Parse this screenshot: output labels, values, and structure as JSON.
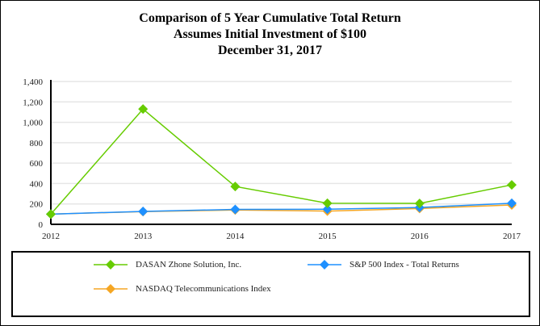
{
  "chart_data": {
    "type": "line",
    "title": [
      "Comparison of 5 Year Cumulative Total Return",
      "Assumes Initial Investment of $100",
      "December 31, 2017"
    ],
    "categories": [
      "2012",
      "2013",
      "2014",
      "2015",
      "2016",
      "2017"
    ],
    "ylim": [
      0,
      1400
    ],
    "yticks": [
      "0",
      "200",
      "400",
      "600",
      "800",
      "1,000",
      "1,200",
      "1,400"
    ],
    "grid": true,
    "legend_position": "bottom",
    "series": [
      {
        "name": "DASAN Zhone Solution, Inc.",
        "color": "#66cc00",
        "values": [
          100,
          1130,
          371,
          207,
          205,
          387
        ]
      },
      {
        "name": "S&P 500 Index - Total Returns",
        "color": "#1e90ff",
        "values": [
          100,
          127,
          146,
          148,
          165,
          207
        ]
      },
      {
        "name": "NASDAQ Telecommunications Index",
        "color": "#f5a623",
        "values": [
          100,
          125,
          140,
          130,
          155,
          190
        ]
      }
    ]
  }
}
